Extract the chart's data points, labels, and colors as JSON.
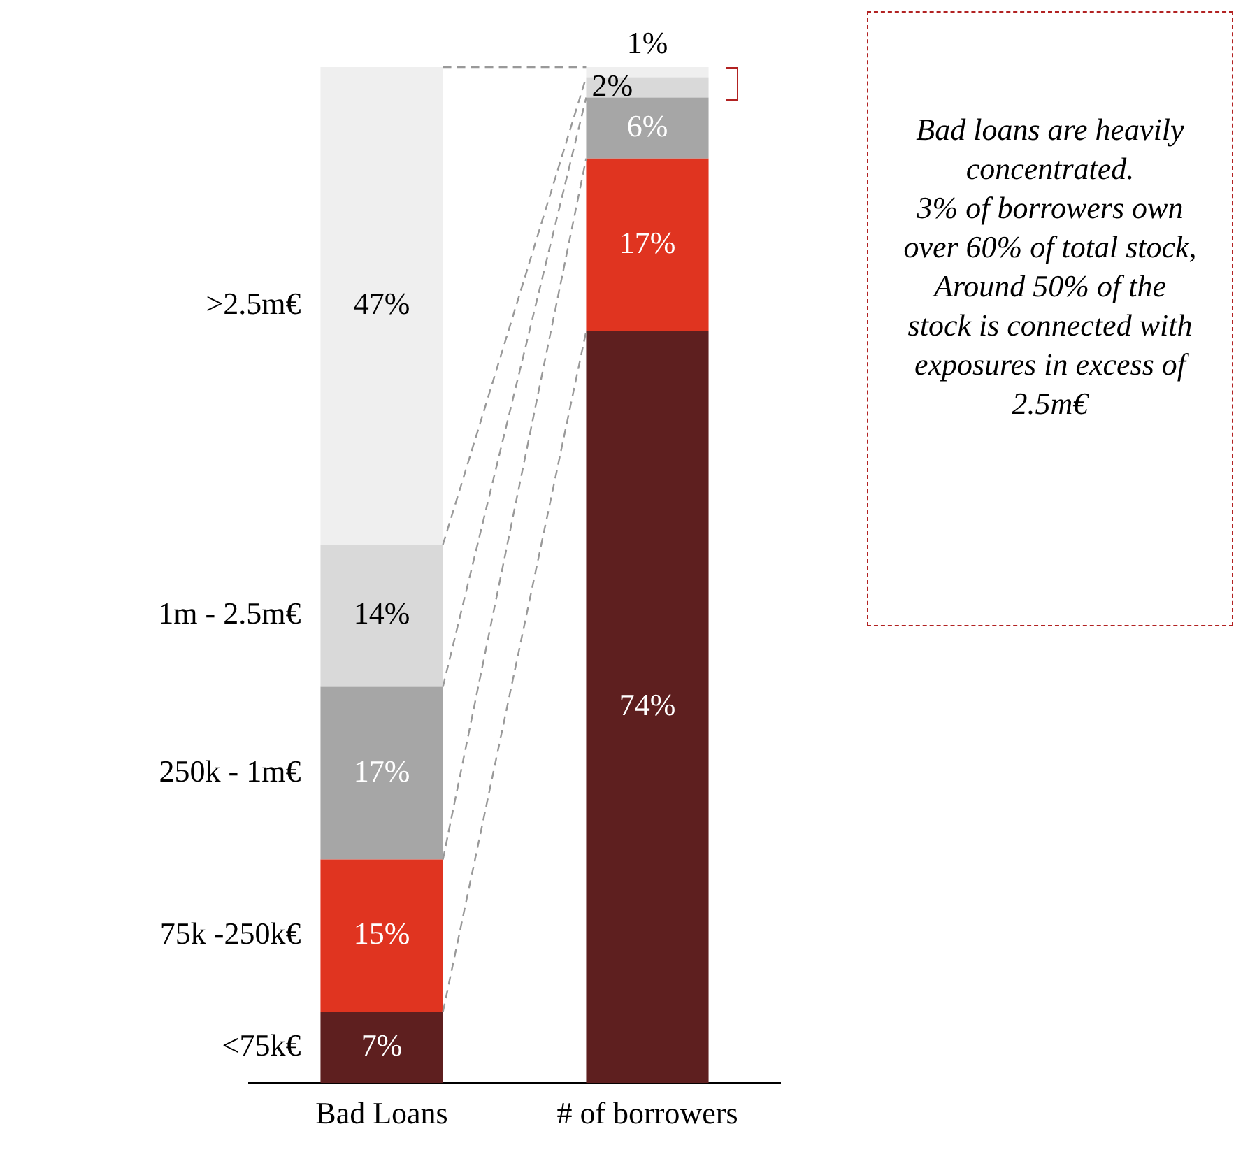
{
  "chart_data": {
    "type": "bar",
    "stacked": true,
    "categories": [
      "Bad Loans",
      "# of borrowers"
    ],
    "series": [
      {
        "name": "<75k€",
        "color": "#5e1f1f",
        "values": [
          7,
          74
        ],
        "value_labels": [
          "7%",
          "74%"
        ]
      },
      {
        "name": "75k -250k€",
        "color": "#e03420",
        "values": [
          15,
          17
        ],
        "value_labels": [
          "15%",
          "17%"
        ]
      },
      {
        "name": "250k - 1m€",
        "color": "#a6a6a6",
        "values": [
          17,
          6
        ],
        "value_labels": [
          "17%",
          "6%"
        ]
      },
      {
        "name": "1m - 2.5m€",
        "color": "#d9d9d9",
        "values": [
          14,
          2
        ],
        "value_labels": [
          "14%",
          "2%"
        ]
      },
      {
        "name": ">2.5m€",
        "color": "#efefef",
        "values": [
          47,
          1
        ],
        "value_labels": [
          "47%",
          "1%"
        ]
      }
    ],
    "tick_labels": "x",
    "grid": false,
    "legend": false,
    "annotations": [
      "Bad loans are heavily concentrated.\n3% of borrowers own over 60% of total stock,\nAround 50% of the stock is connected with exposures in excess of 2.5m€"
    ]
  }
}
